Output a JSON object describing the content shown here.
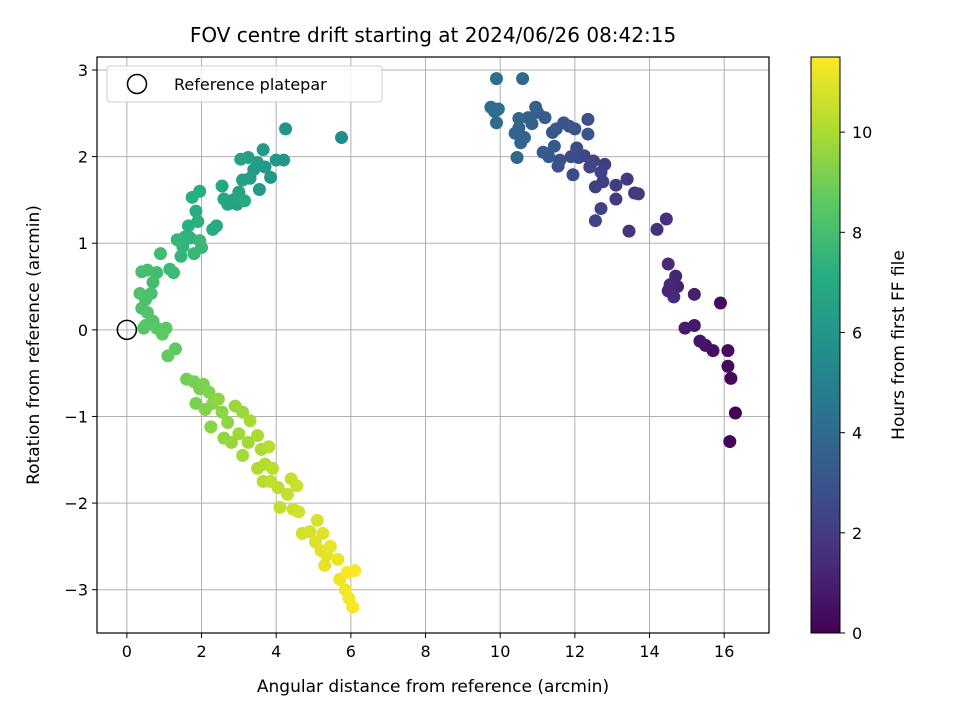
{
  "chart_data": {
    "type": "scatter",
    "title": "FOV centre drift starting at 2024/06/26 08:42:15",
    "xlabel": "Angular distance from reference (arcmin)",
    "ylabel": "Rotation from reference (arcmin)",
    "xlim": [
      -0.8,
      17.2
    ],
    "ylim": [
      -3.5,
      3.15
    ],
    "x_ticks": [
      0,
      2,
      4,
      6,
      8,
      10,
      12,
      14,
      16
    ],
    "y_ticks": [
      -3,
      -2,
      -1,
      0,
      1,
      2,
      3
    ],
    "grid": true,
    "legend": {
      "position": "top-left",
      "entries": [
        "Reference platepar"
      ]
    },
    "reference_point": {
      "x": 0,
      "y": 0,
      "label": "Reference platepar"
    },
    "colorbar": {
      "label": "Hours from first FF file",
      "colormap": "viridis",
      "range": [
        0,
        11.5
      ],
      "ticks": [
        0,
        2,
        4,
        6,
        8,
        10
      ]
    },
    "series": [
      {
        "points": [
          {
            "x": 16.3,
            "y": -0.96,
            "c": 0.05
          },
          {
            "x": 16.15,
            "y": -1.29,
            "c": 0.1
          },
          {
            "x": 16.18,
            "y": -0.56,
            "c": 0.2
          },
          {
            "x": 16.1,
            "y": -0.42,
            "c": 0.25
          },
          {
            "x": 16.1,
            "y": -0.24,
            "c": 0.3
          },
          {
            "x": 15.9,
            "y": 0.31,
            "c": 0.4
          },
          {
            "x": 15.7,
            "y": -0.24,
            "c": 0.5
          },
          {
            "x": 15.5,
            "y": -0.18,
            "c": 0.6
          },
          {
            "x": 15.35,
            "y": -0.13,
            "c": 0.7
          },
          {
            "x": 15.2,
            "y": 0.05,
            "c": 0.8
          },
          {
            "x": 14.95,
            "y": 0.02,
            "c": 0.9
          },
          {
            "x": 15.2,
            "y": 0.41,
            "c": 1.0
          },
          {
            "x": 14.75,
            "y": 0.5,
            "c": 1.1
          },
          {
            "x": 14.6,
            "y": 0.48,
            "c": 1.15
          },
          {
            "x": 14.7,
            "y": 0.62,
            "c": 1.2
          },
          {
            "x": 14.55,
            "y": 0.52,
            "c": 1.25
          },
          {
            "x": 14.5,
            "y": 0.45,
            "c": 1.3
          },
          {
            "x": 14.65,
            "y": 0.38,
            "c": 1.35
          },
          {
            "x": 14.5,
            "y": 0.76,
            "c": 1.4
          },
          {
            "x": 14.45,
            "y": 1.28,
            "c": 1.5
          },
          {
            "x": 14.2,
            "y": 1.16,
            "c": 1.6
          },
          {
            "x": 13.45,
            "y": 1.14,
            "c": 1.7
          },
          {
            "x": 13.6,
            "y": 1.58,
            "c": 1.8
          },
          {
            "x": 13.7,
            "y": 1.57,
            "c": 1.85
          },
          {
            "x": 13.4,
            "y": 1.74,
            "c": 1.9
          },
          {
            "x": 13.1,
            "y": 1.51,
            "c": 2.0
          },
          {
            "x": 13.1,
            "y": 1.67,
            "c": 2.05
          },
          {
            "x": 12.8,
            "y": 1.91,
            "c": 2.1
          },
          {
            "x": 12.75,
            "y": 1.71,
            "c": 2.15
          },
          {
            "x": 12.55,
            "y": 1.65,
            "c": 2.2
          },
          {
            "x": 12.7,
            "y": 1.4,
            "c": 2.25
          },
          {
            "x": 12.55,
            "y": 1.26,
            "c": 2.3
          },
          {
            "x": 12.7,
            "y": 1.82,
            "c": 2.35
          },
          {
            "x": 12.5,
            "y": 1.95,
            "c": 2.4
          },
          {
            "x": 12.4,
            "y": 1.88,
            "c": 2.45
          },
          {
            "x": 12.25,
            "y": 2.01,
            "c": 2.5
          },
          {
            "x": 12.1,
            "y": 1.99,
            "c": 2.55
          },
          {
            "x": 12.05,
            "y": 2.1,
            "c": 2.6
          },
          {
            "x": 11.95,
            "y": 1.79,
            "c": 2.65
          },
          {
            "x": 11.9,
            "y": 2.0,
            "c": 2.7
          },
          {
            "x": 11.6,
            "y": 1.96,
            "c": 2.75
          },
          {
            "x": 11.55,
            "y": 1.89,
            "c": 2.8
          },
          {
            "x": 12.35,
            "y": 2.43,
            "c": 2.85
          },
          {
            "x": 12.35,
            "y": 2.26,
            "c": 2.9
          },
          {
            "x": 12.0,
            "y": 2.32,
            "c": 2.95
          },
          {
            "x": 11.85,
            "y": 2.35,
            "c": 3.0
          },
          {
            "x": 11.7,
            "y": 2.39,
            "c": 3.05
          },
          {
            "x": 11.5,
            "y": 2.32,
            "c": 3.1
          },
          {
            "x": 11.4,
            "y": 2.28,
            "c": 3.15
          },
          {
            "x": 11.45,
            "y": 2.12,
            "c": 3.2
          },
          {
            "x": 11.3,
            "y": 2.0,
            "c": 3.25
          },
          {
            "x": 11.15,
            "y": 2.05,
            "c": 3.3
          },
          {
            "x": 11.0,
            "y": 2.51,
            "c": 3.35
          },
          {
            "x": 11.2,
            "y": 2.45,
            "c": 3.4
          },
          {
            "x": 10.95,
            "y": 2.57,
            "c": 3.45
          },
          {
            "x": 10.75,
            "y": 2.45,
            "c": 3.5
          },
          {
            "x": 10.85,
            "y": 2.38,
            "c": 3.55
          },
          {
            "x": 10.65,
            "y": 2.22,
            "c": 3.6
          },
          {
            "x": 10.5,
            "y": 2.33,
            "c": 3.65
          },
          {
            "x": 10.55,
            "y": 2.16,
            "c": 3.7
          },
          {
            "x": 10.4,
            "y": 2.27,
            "c": 3.75
          },
          {
            "x": 10.5,
            "y": 2.44,
            "c": 3.8
          },
          {
            "x": 10.45,
            "y": 1.99,
            "c": 3.85
          },
          {
            "x": 10.6,
            "y": 2.9,
            "c": 3.9
          },
          {
            "x": 9.9,
            "y": 2.39,
            "c": 3.95
          },
          {
            "x": 9.85,
            "y": 2.52,
            "c": 4.0
          },
          {
            "x": 9.75,
            "y": 2.57,
            "c": 4.05
          },
          {
            "x": 9.95,
            "y": 2.55,
            "c": 4.1
          },
          {
            "x": 9.9,
            "y": 2.9,
            "c": 4.15
          },
          {
            "x": 5.75,
            "y": 2.22,
            "c": 5.6
          },
          {
            "x": 4.25,
            "y": 2.32,
            "c": 5.9
          },
          {
            "x": 4.2,
            "y": 1.96,
            "c": 6.0
          },
          {
            "x": 4.0,
            "y": 1.96,
            "c": 6.05
          },
          {
            "x": 3.85,
            "y": 1.76,
            "c": 6.1
          },
          {
            "x": 3.7,
            "y": 1.88,
            "c": 6.15
          },
          {
            "x": 3.65,
            "y": 2.08,
            "c": 6.2
          },
          {
            "x": 3.55,
            "y": 1.62,
            "c": 6.25
          },
          {
            "x": 3.5,
            "y": 1.93,
            "c": 6.3
          },
          {
            "x": 3.4,
            "y": 1.85,
            "c": 6.35
          },
          {
            "x": 3.3,
            "y": 1.75,
            "c": 6.4
          },
          {
            "x": 3.25,
            "y": 1.99,
            "c": 6.45
          },
          {
            "x": 3.1,
            "y": 1.73,
            "c": 6.5
          },
          {
            "x": 3.05,
            "y": 1.97,
            "c": 6.55
          },
          {
            "x": 3.0,
            "y": 1.59,
            "c": 6.6
          },
          {
            "x": 2.95,
            "y": 1.45,
            "c": 6.65
          },
          {
            "x": 2.85,
            "y": 1.5,
            "c": 6.7
          },
          {
            "x": 2.7,
            "y": 1.45,
            "c": 6.75
          },
          {
            "x": 2.6,
            "y": 1.51,
            "c": 6.8
          },
          {
            "x": 2.55,
            "y": 1.66,
            "c": 6.85
          },
          {
            "x": 3.15,
            "y": 1.49,
            "c": 6.9
          },
          {
            "x": 2.4,
            "y": 1.2,
            "c": 7.0
          },
          {
            "x": 2.3,
            "y": 1.16,
            "c": 7.05
          },
          {
            "x": 1.95,
            "y": 1.6,
            "c": 7.1
          },
          {
            "x": 1.85,
            "y": 1.37,
            "c": 7.15
          },
          {
            "x": 1.75,
            "y": 1.53,
            "c": 7.2
          },
          {
            "x": 1.9,
            "y": 1.25,
            "c": 7.25
          },
          {
            "x": 1.65,
            "y": 1.2,
            "c": 7.3
          },
          {
            "x": 1.7,
            "y": 1.06,
            "c": 7.35
          },
          {
            "x": 1.55,
            "y": 1.07,
            "c": 7.4
          },
          {
            "x": 1.5,
            "y": 0.96,
            "c": 7.45
          },
          {
            "x": 1.45,
            "y": 0.85,
            "c": 7.5
          },
          {
            "x": 1.35,
            "y": 1.04,
            "c": 7.55
          },
          {
            "x": 2.0,
            "y": 0.95,
            "c": 7.6
          },
          {
            "x": 1.8,
            "y": 0.88,
            "c": 7.65
          },
          {
            "x": 1.95,
            "y": 1.03,
            "c": 7.7
          },
          {
            "x": 1.25,
            "y": 0.66,
            "c": 7.75
          },
          {
            "x": 1.15,
            "y": 0.7,
            "c": 7.8
          },
          {
            "x": 0.9,
            "y": 0.88,
            "c": 7.85
          },
          {
            "x": 0.8,
            "y": 0.66,
            "c": 7.9
          },
          {
            "x": 0.7,
            "y": 0.55,
            "c": 7.95
          },
          {
            "x": 0.55,
            "y": 0.69,
            "c": 8.0
          },
          {
            "x": 0.4,
            "y": 0.67,
            "c": 8.05
          },
          {
            "x": 0.65,
            "y": 0.42,
            "c": 8.1
          },
          {
            "x": 0.5,
            "y": 0.35,
            "c": 8.15
          },
          {
            "x": 0.4,
            "y": 0.25,
            "c": 8.2
          },
          {
            "x": 0.35,
            "y": 0.42,
            "c": 8.25
          },
          {
            "x": 0.55,
            "y": 0.2,
            "c": 8.3
          },
          {
            "x": 0.7,
            "y": 0.1,
            "c": 8.35
          },
          {
            "x": 0.5,
            "y": 0.05,
            "c": 8.4
          },
          {
            "x": 0.45,
            "y": 0.02,
            "c": 8.45
          },
          {
            "x": 0.8,
            "y": 0.02,
            "c": 8.5
          },
          {
            "x": 1.05,
            "y": 0.02,
            "c": 8.55
          },
          {
            "x": 0.95,
            "y": -0.05,
            "c": 8.6
          },
          {
            "x": 1.3,
            "y": -0.22,
            "c": 8.65
          },
          {
            "x": 1.1,
            "y": -0.3,
            "c": 8.7
          },
          {
            "x": 1.6,
            "y": -0.57,
            "c": 9.0
          },
          {
            "x": 1.8,
            "y": -0.6,
            "c": 9.05
          },
          {
            "x": 1.95,
            "y": -0.68,
            "c": 9.1
          },
          {
            "x": 1.85,
            "y": -0.85,
            "c": 9.15
          },
          {
            "x": 2.05,
            "y": -0.63,
            "c": 9.2
          },
          {
            "x": 2.2,
            "y": -0.72,
            "c": 9.25
          },
          {
            "x": 2.1,
            "y": -0.92,
            "c": 9.3
          },
          {
            "x": 2.3,
            "y": -0.85,
            "c": 9.35
          },
          {
            "x": 2.25,
            "y": -1.12,
            "c": 9.4
          },
          {
            "x": 2.55,
            "y": -0.95,
            "c": 9.45
          },
          {
            "x": 2.45,
            "y": -0.8,
            "c": 9.5
          },
          {
            "x": 2.7,
            "y": -1.07,
            "c": 9.55
          },
          {
            "x": 2.6,
            "y": -1.25,
            "c": 9.6
          },
          {
            "x": 2.8,
            "y": -1.3,
            "c": 9.65
          },
          {
            "x": 2.9,
            "y": -0.88,
            "c": 9.7
          },
          {
            "x": 3.1,
            "y": -0.95,
            "c": 9.75
          },
          {
            "x": 3.0,
            "y": -1.2,
            "c": 9.8
          },
          {
            "x": 3.25,
            "y": -1.3,
            "c": 9.85
          },
          {
            "x": 3.1,
            "y": -1.45,
            "c": 9.9
          },
          {
            "x": 3.3,
            "y": -1.05,
            "c": 9.95
          },
          {
            "x": 3.5,
            "y": -1.22,
            "c": 10.0
          },
          {
            "x": 3.6,
            "y": -1.38,
            "c": 10.05
          },
          {
            "x": 3.5,
            "y": -1.6,
            "c": 10.1
          },
          {
            "x": 3.7,
            "y": -1.55,
            "c": 10.15
          },
          {
            "x": 3.65,
            "y": -1.75,
            "c": 10.2
          },
          {
            "x": 3.8,
            "y": -1.35,
            "c": 10.25
          },
          {
            "x": 3.9,
            "y": -1.6,
            "c": 10.3
          },
          {
            "x": 4.05,
            "y": -1.82,
            "c": 10.35
          },
          {
            "x": 3.85,
            "y": -1.75,
            "c": 10.4
          },
          {
            "x": 4.1,
            "y": -2.05,
            "c": 10.45
          },
          {
            "x": 4.3,
            "y": -1.9,
            "c": 10.5
          },
          {
            "x": 4.4,
            "y": -1.72,
            "c": 10.55
          },
          {
            "x": 4.55,
            "y": -1.8,
            "c": 10.6
          },
          {
            "x": 4.45,
            "y": -2.07,
            "c": 10.65
          },
          {
            "x": 4.6,
            "y": -2.1,
            "c": 10.7
          },
          {
            "x": 4.7,
            "y": -2.35,
            "c": 10.75
          },
          {
            "x": 4.9,
            "y": -2.33,
            "c": 10.8
          },
          {
            "x": 5.1,
            "y": -2.2,
            "c": 10.85
          },
          {
            "x": 5.05,
            "y": -2.45,
            "c": 10.9
          },
          {
            "x": 5.25,
            "y": -2.35,
            "c": 10.95
          },
          {
            "x": 5.2,
            "y": -2.55,
            "c": 11.0
          },
          {
            "x": 5.35,
            "y": -2.6,
            "c": 11.05
          },
          {
            "x": 5.3,
            "y": -2.72,
            "c": 11.1
          },
          {
            "x": 5.45,
            "y": -2.5,
            "c": 11.15
          },
          {
            "x": 5.65,
            "y": -2.65,
            "c": 11.2
          },
          {
            "x": 5.7,
            "y": -2.88,
            "c": 11.25
          },
          {
            "x": 5.85,
            "y": -3.0,
            "c": 11.3
          },
          {
            "x": 5.95,
            "y": -3.1,
            "c": 11.35
          },
          {
            "x": 6.05,
            "y": -3.2,
            "c": 11.4
          },
          {
            "x": 6.1,
            "y": -2.78,
            "c": 11.45
          },
          {
            "x": 5.9,
            "y": -2.8,
            "c": 11.45
          }
        ]
      }
    ]
  }
}
